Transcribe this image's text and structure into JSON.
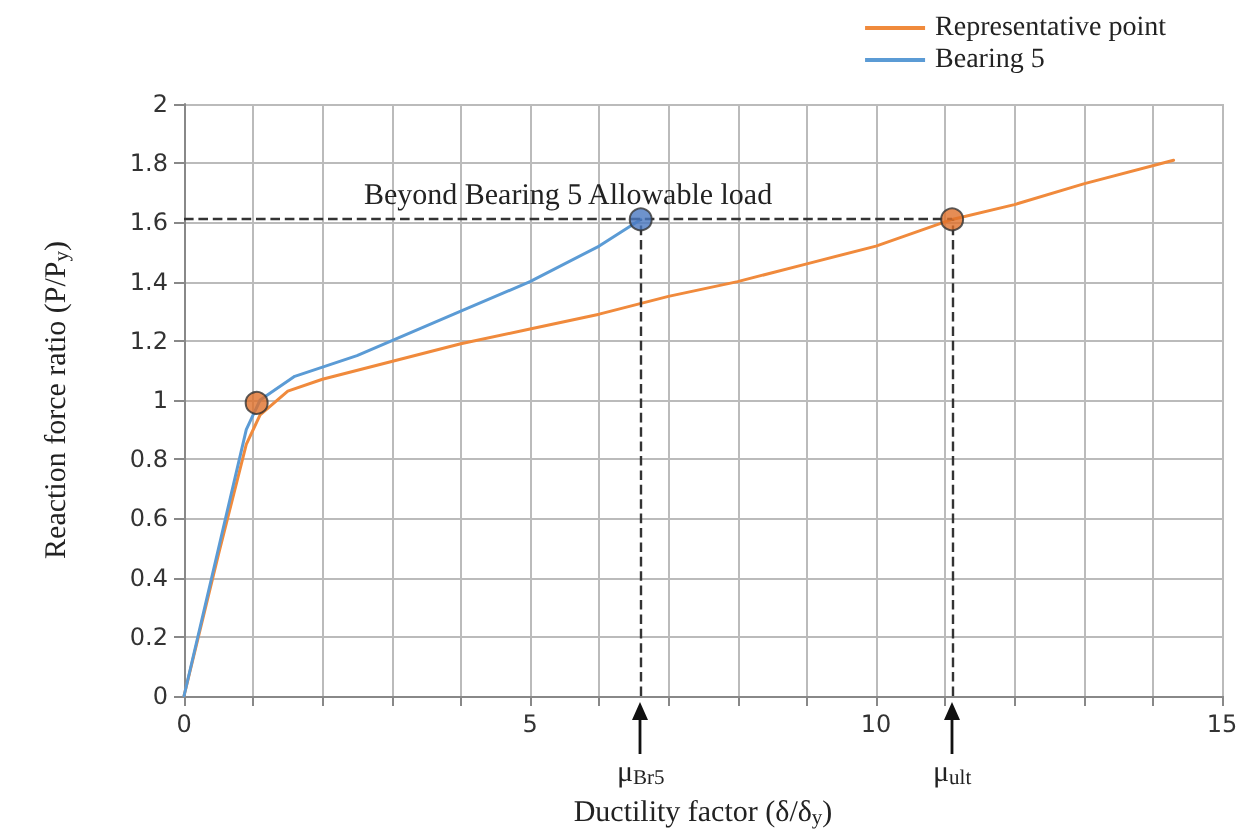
{
  "chart_data": {
    "type": "line",
    "xlabel": "Ductility factor (δ/δ$_{y}$)",
    "ylabel": "Reaction force ratio (P/P$_{y}$)",
    "xlim": [
      0,
      15
    ],
    "xticks": [
      0,
      {
        "value": 1,
        "label": null
      },
      {
        "value": 2,
        "label": null
      },
      {
        "value": 3,
        "label": null
      },
      {
        "value": 4,
        "label": null
      },
      5,
      {
        "value": 6,
        "label": null
      },
      {
        "value": 7,
        "label": null
      },
      {
        "value": 8,
        "label": null
      },
      {
        "value": 9,
        "label": null
      },
      10,
      {
        "value": 11,
        "label": null
      },
      {
        "value": 12,
        "label": null
      },
      {
        "value": 13,
        "label": null
      },
      {
        "value": 14,
        "label": null
      },
      15
    ],
    "ylim": [
      0,
      2
    ],
    "yticks": [
      0,
      0.2,
      0.4,
      0.6,
      0.8,
      1,
      1.2,
      1.4,
      1.6,
      1.8,
      2
    ],
    "grid": true,
    "legend": "top right",
    "marker": "none",
    "series": [
      {
        "name": "Representative point",
        "color": "#f08a3c",
        "x": [
          0,
          0.5,
          0.9,
          1.1,
          1.5,
          2,
          3,
          4,
          5,
          6,
          7,
          8,
          9,
          10,
          11.1,
          12,
          13,
          14.3
        ],
        "values": [
          0,
          0.48,
          0.85,
          0.95,
          1.03,
          1.07,
          1.13,
          1.19,
          1.24,
          1.29,
          1.35,
          1.4,
          1.46,
          1.52,
          1.61,
          1.66,
          1.73,
          1.81
        ]
      },
      {
        "name": "Bearing 5",
        "color": "#5b9bd5",
        "x": [
          0,
          0.5,
          0.9,
          1.1,
          1.6,
          2.5,
          4,
          5,
          6,
          6.6
        ],
        "values": [
          0,
          0.5,
          0.9,
          1.0,
          1.08,
          1.15,
          1.3,
          1.4,
          1.52,
          1.61
        ]
      },
      {
        "type": "scatter",
        "marker": "circle",
        "x": [
          1.05,
          6.6,
          11.1
        ],
        "values": [
          0.99,
          1.61,
          1.61
        ],
        "colors": [
          "#e0702a",
          "#4a78c0",
          "#e0702a"
        ]
      }
    ],
    "ref_lines": [
      {
        "axis": "y",
        "value": 1.61,
        "line_style": "dashed",
        "color": "#333333"
      },
      {
        "axis": "x",
        "value": 6.6,
        "line_style": "dashed",
        "color": "#333333"
      },
      {
        "axis": "x",
        "value": 11.1,
        "line_style": "dashed",
        "color": "#333333"
      }
    ],
    "annotations": [
      "Beyond Bearing 5 Allowable load",
      "μ$_{Br5}$",
      "μ$_{ult}$"
    ]
  }
}
